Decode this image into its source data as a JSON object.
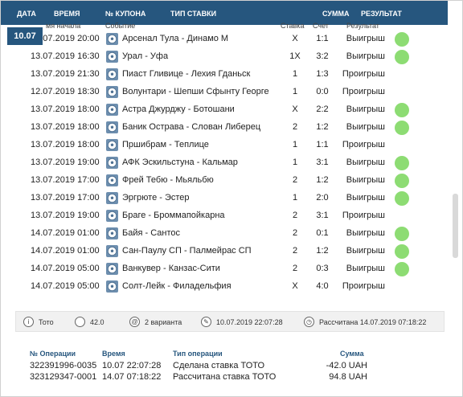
{
  "header": {
    "date": "ДАТА",
    "time": "ВРЕМЯ",
    "coupon_no": "№ КУПОНА",
    "bet_type": "ТИП СТАВКИ",
    "sum": "СУММА",
    "result": "РЕЗУЛЬТАТ"
  },
  "date_badge": "10.07",
  "sub_header": {
    "start": "мя начала",
    "event": "Событие",
    "bet": "Ставка",
    "score": "Счет",
    "result": "Результат"
  },
  "events": [
    {
      "time": "13.07.2019 20:00",
      "event": "Арсенал Тула - Динамо М",
      "bet": "X",
      "score": "1:1",
      "result": "Выигрыш",
      "won": true
    },
    {
      "time": "13.07.2019 16:30",
      "event": "Урал - Уфа",
      "bet": "1X",
      "score": "3:2",
      "result": "Выигрыш",
      "won": true
    },
    {
      "time": "13.07.2019 21:30",
      "event": "Пиаст Гливице - Лехия Гданьск",
      "bet": "1",
      "score": "1:3",
      "result": "Проигрыш",
      "won": false
    },
    {
      "time": "12.07.2019 18:30",
      "event": "Волунтари - Шепши Сфынту Георге",
      "bet": "1",
      "score": "0:0",
      "result": "Проигрыш",
      "won": false
    },
    {
      "time": "13.07.2019 18:00",
      "event": "Астра Джурджу - Ботошани",
      "bet": "X",
      "score": "2:2",
      "result": "Выигрыш",
      "won": true
    },
    {
      "time": "13.07.2019 18:00",
      "event": "Баник Острава - Слован Либерец",
      "bet": "2",
      "score": "1:2",
      "result": "Выигрыш",
      "won": true
    },
    {
      "time": "13.07.2019 18:00",
      "event": "Пршибрам - Теплице",
      "bet": "1",
      "score": "1:1",
      "result": "Проигрыш",
      "won": false
    },
    {
      "time": "13.07.2019 19:00",
      "event": "АФК Эскильстуна - Кальмар",
      "bet": "1",
      "score": "3:1",
      "result": "Выигрыш",
      "won": true
    },
    {
      "time": "13.07.2019 17:00",
      "event": "Фрей Тебю - Мьяльбю",
      "bet": "2",
      "score": "1:2",
      "result": "Выигрыш",
      "won": true
    },
    {
      "time": "13.07.2019 17:00",
      "event": "Эргрюте - Эстер",
      "bet": "1",
      "score": "2:0",
      "result": "Выигрыш",
      "won": true
    },
    {
      "time": "13.07.2019 19:00",
      "event": "Браге - Броммапойкарна",
      "bet": "2",
      "score": "3:1",
      "result": "Проигрыш",
      "won": false
    },
    {
      "time": "14.07.2019 01:00",
      "event": "Байя - Сантос",
      "bet": "2",
      "score": "0:1",
      "result": "Выигрыш",
      "won": true
    },
    {
      "time": "14.07.2019 01:00",
      "event": "Сан-Паулу СП - Палмейрас СП",
      "bet": "2",
      "score": "1:2",
      "result": "Выигрыш",
      "won": true
    },
    {
      "time": "14.07.2019 05:00",
      "event": "Ванкувер - Канзас-Сити",
      "bet": "2",
      "score": "0:3",
      "result": "Выигрыш",
      "won": true
    },
    {
      "time": "14.07.2019 05:00",
      "event": "Солт-Лейк - Филадельфия",
      "bet": "X",
      "score": "4:0",
      "result": "Проигрыш",
      "won": false
    }
  ],
  "info_bar": {
    "game": "Тото",
    "amount": "42.0",
    "variants": "2 варианта",
    "created": "10.07.2019 22:07:28",
    "settled": "Рассчитана 14.07.2019 07:18:22"
  },
  "operations": {
    "headers": {
      "id": "№ Операции",
      "time": "Время",
      "type": "Тип операции",
      "sum": "Сумма"
    },
    "rows": [
      {
        "id": "322391996-0035",
        "time": "10.07 22:07:28",
        "type": "Сделана ставка ТОТО",
        "sum": "-42.0 UAH"
      },
      {
        "id": "323129347-0001",
        "time": "14.07 07:18:22",
        "type": "Рассчитана ставка ТОТО",
        "sum": "94.8 UAH"
      }
    ]
  },
  "colors": {
    "header_bg": "#26567e",
    "win_dot": "#8ddc73",
    "sport_icon": "#6d8eae"
  },
  "icons": {
    "sport": "soccer-ball-icon",
    "game": "info-icon",
    "amount": "coin-icon",
    "variants": "at-icon",
    "created": "pencil-icon",
    "settled": "clock-icon"
  }
}
